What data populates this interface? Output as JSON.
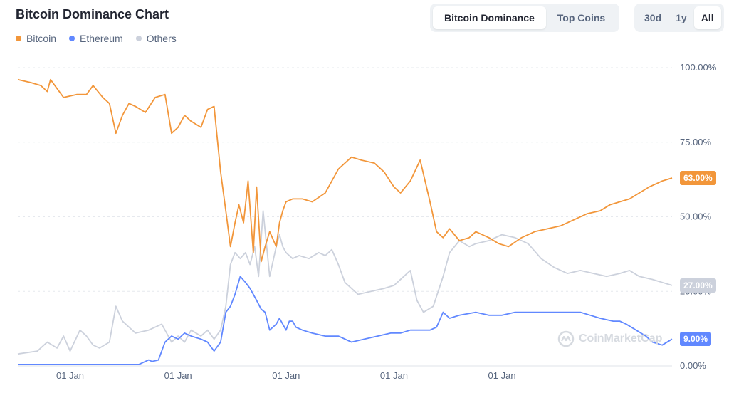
{
  "title": "Bitcoin Dominance Chart",
  "tabs": [
    {
      "label": "Bitcoin Dominance",
      "active": true
    },
    {
      "label": "Top Coins",
      "active": false
    }
  ],
  "ranges": [
    {
      "label": "30d",
      "active": false
    },
    {
      "label": "1y",
      "active": false
    },
    {
      "label": "All",
      "active": true
    }
  ],
  "watermark": "CoinMarketCap",
  "colors": {
    "bitcoin": "#f2963a",
    "ethereum": "#6188ff",
    "others": "#ccd1dc",
    "grid": "#e6e9ee"
  },
  "chart_data": {
    "type": "line",
    "title": "Bitcoin Dominance Chart",
    "y_ticks": [
      "100.00%",
      "75.00%",
      "50.00%",
      "25.00%",
      "0.00%"
    ],
    "ylim": [
      0,
      100
    ],
    "x_ticks": [
      "01 Jan",
      "01 Jan",
      "01 Jan",
      "01 Jan",
      "01 Jan"
    ],
    "x_tick_positions": [
      0.08,
      0.245,
      0.41,
      0.575,
      0.74
    ],
    "grid": true,
    "legend": "top-left",
    "current_labels": {
      "Bitcoin": "63.00%",
      "Others": "27.00%",
      "Ethereum": "9.00%"
    },
    "series": [
      {
        "name": "Bitcoin",
        "x": [
          0,
          0.02,
          0.035,
          0.045,
          0.05,
          0.07,
          0.09,
          0.105,
          0.115,
          0.13,
          0.14,
          0.15,
          0.16,
          0.17,
          0.18,
          0.195,
          0.21,
          0.225,
          0.235,
          0.245,
          0.255,
          0.265,
          0.28,
          0.29,
          0.3,
          0.31,
          0.318,
          0.325,
          0.332,
          0.338,
          0.345,
          0.352,
          0.36,
          0.365,
          0.372,
          0.378,
          0.385,
          0.395,
          0.4,
          0.405,
          0.41,
          0.42,
          0.435,
          0.45,
          0.47,
          0.49,
          0.51,
          0.525,
          0.545,
          0.56,
          0.575,
          0.585,
          0.6,
          0.615,
          0.63,
          0.64,
          0.65,
          0.66,
          0.675,
          0.69,
          0.7,
          0.72,
          0.735,
          0.75,
          0.77,
          0.79,
          0.81,
          0.83,
          0.85,
          0.87,
          0.89,
          0.905,
          0.92,
          0.935,
          0.95,
          0.965,
          0.975,
          0.985,
          1.0
        ],
        "values": [
          96,
          95,
          94,
          92,
          96,
          90,
          91,
          91,
          94,
          90,
          88,
          78,
          84,
          88,
          87,
          85,
          90,
          91,
          78,
          80,
          84,
          82,
          80,
          86,
          87,
          65,
          52,
          40,
          48,
          54,
          48,
          62,
          38,
          60,
          35,
          40,
          45,
          40,
          48,
          52,
          55,
          56,
          56,
          55,
          58,
          66,
          70,
          69,
          68,
          65,
          60,
          58,
          62,
          69,
          55,
          45,
          43,
          46,
          42,
          43,
          45,
          43,
          41,
          40,
          43,
          45,
          46,
          47,
          49,
          51,
          52,
          54,
          55,
          56,
          58,
          60,
          61,
          62,
          63
        ]
      },
      {
        "name": "Ethereum",
        "x": [
          0,
          0.15,
          0.185,
          0.19,
          0.2,
          0.205,
          0.215,
          0.225,
          0.235,
          0.245,
          0.255,
          0.265,
          0.28,
          0.29,
          0.3,
          0.31,
          0.318,
          0.325,
          0.332,
          0.34,
          0.348,
          0.355,
          0.365,
          0.372,
          0.378,
          0.385,
          0.395,
          0.4,
          0.405,
          0.41,
          0.415,
          0.42,
          0.425,
          0.435,
          0.45,
          0.47,
          0.49,
          0.51,
          0.53,
          0.55,
          0.57,
          0.585,
          0.6,
          0.615,
          0.63,
          0.64,
          0.65,
          0.66,
          0.675,
          0.7,
          0.72,
          0.74,
          0.76,
          0.78,
          0.8,
          0.82,
          0.84,
          0.86,
          0.875,
          0.89,
          0.91,
          0.92,
          0.93,
          0.945,
          0.96,
          0.97,
          0.985,
          1.0
        ],
        "values": [
          0.5,
          0.5,
          0.5,
          1,
          2,
          1.5,
          2,
          8,
          10,
          9,
          11,
          10,
          9,
          8,
          5,
          8,
          18,
          20,
          24,
          30,
          28,
          26,
          22,
          19,
          18,
          12,
          14,
          16,
          14,
          12,
          15,
          15,
          13,
          12,
          11,
          10,
          10,
          8,
          9,
          10,
          11,
          11,
          12,
          12,
          12,
          13,
          18,
          16,
          17,
          18,
          17,
          17,
          18,
          18,
          18,
          18,
          18,
          18,
          17,
          16,
          15,
          15,
          14,
          12,
          10,
          8,
          7,
          9
        ]
      },
      {
        "name": "Others",
        "x": [
          0,
          0.03,
          0.045,
          0.06,
          0.07,
          0.08,
          0.095,
          0.105,
          0.115,
          0.125,
          0.14,
          0.15,
          0.16,
          0.17,
          0.18,
          0.2,
          0.22,
          0.235,
          0.245,
          0.255,
          0.265,
          0.28,
          0.29,
          0.3,
          0.31,
          0.318,
          0.325,
          0.332,
          0.34,
          0.348,
          0.355,
          0.362,
          0.368,
          0.375,
          0.385,
          0.395,
          0.4,
          0.405,
          0.41,
          0.42,
          0.43,
          0.445,
          0.46,
          0.47,
          0.48,
          0.49,
          0.5,
          0.52,
          0.54,
          0.56,
          0.575,
          0.59,
          0.6,
          0.61,
          0.62,
          0.635,
          0.65,
          0.66,
          0.675,
          0.69,
          0.7,
          0.72,
          0.74,
          0.76,
          0.78,
          0.8,
          0.82,
          0.84,
          0.86,
          0.88,
          0.9,
          0.92,
          0.935,
          0.95,
          0.97,
          0.985,
          1.0
        ],
        "values": [
          4,
          5,
          8,
          6,
          10,
          5,
          12,
          10,
          7,
          6,
          8,
          20,
          15,
          13,
          11,
          12,
          14,
          8,
          10,
          8,
          12,
          10,
          12,
          9,
          12,
          20,
          34,
          38,
          36,
          38,
          34,
          40,
          30,
          52,
          30,
          40,
          44,
          40,
          38,
          36,
          37,
          36,
          38,
          37,
          39,
          34,
          28,
          24,
          25,
          26,
          27,
          30,
          32,
          22,
          18,
          20,
          30,
          38,
          42,
          40,
          41,
          42,
          44,
          43,
          41,
          36,
          33,
          31,
          32,
          31,
          30,
          31,
          32,
          30,
          29,
          28,
          27
        ]
      }
    ]
  }
}
